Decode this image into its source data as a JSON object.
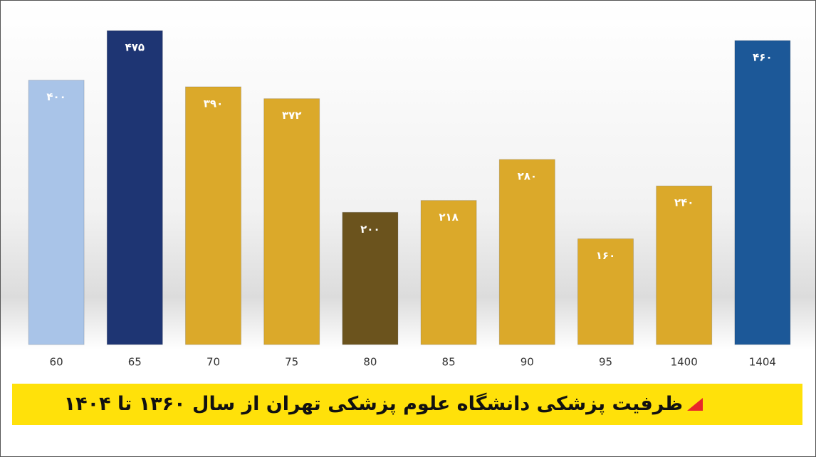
{
  "chart_data": {
    "type": "bar",
    "title": "ظرفیت پزشکی دانشگاه علوم پزشکی تهران از سال ۱۳۶۰ تا ۱۴۰۴",
    "categories": [
      "60",
      "65",
      "70",
      "75",
      "80",
      "85",
      "90",
      "95",
      "1400",
      "1404"
    ],
    "values": [
      400,
      475,
      390,
      372,
      200,
      218,
      280,
      160,
      240,
      460
    ],
    "value_labels": [
      "۴۰۰",
      "۴۷۵",
      "۳۹۰",
      "۳۷۲",
      "۲۰۰",
      "۲۱۸",
      "۲۸۰",
      "۱۶۰",
      "۲۴۰",
      "۴۶۰"
    ],
    "colors": [
      "#a9c4e8",
      "#1e3573",
      "#dba92a",
      "#dba92a",
      "#6b531d",
      "#dba92a",
      "#dba92a",
      "#dba92a",
      "#dba92a",
      "#1c5898"
    ]
  }
}
